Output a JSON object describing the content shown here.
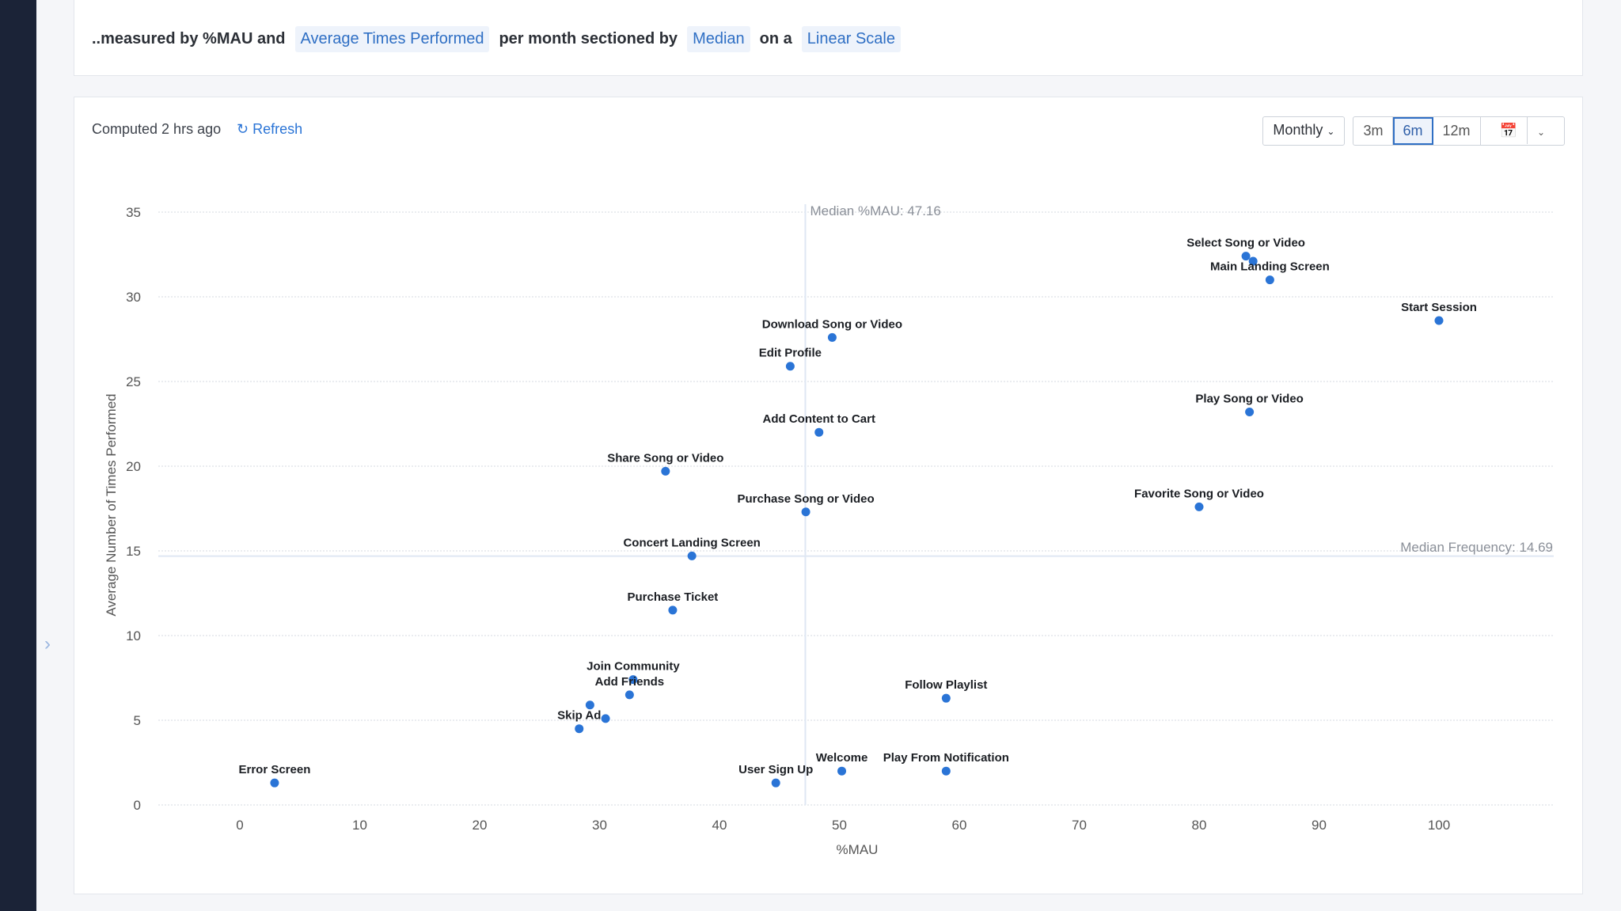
{
  "query": {
    "prefix": "..measured by %MAU and",
    "metric": "Average Times Performed",
    "mid": "per month sectioned by",
    "section": "Median",
    "on": "on a",
    "scale": "Linear Scale"
  },
  "toolbar": {
    "computed": "Computed 2 hrs ago",
    "refresh": "Refresh",
    "interval": "Monthly",
    "ranges": [
      "3m",
      "6m",
      "12m"
    ],
    "selected_range": "6m",
    "calendar_icon": "calendar-icon"
  },
  "colors": {
    "point": "#2a74d6",
    "median_line": "#dfe7f3",
    "accent": "#2f6fc4"
  },
  "chart_data": {
    "type": "scatter",
    "xlabel": "%MAU",
    "ylabel": "Average Number of Times Performed",
    "xlim": [
      -7,
      109
    ],
    "ylim": [
      0,
      35
    ],
    "xticks": [
      0,
      10,
      20,
      30,
      40,
      50,
      60,
      70,
      80,
      90,
      100
    ],
    "yticks": [
      0,
      5,
      10,
      15,
      20,
      25,
      30,
      35
    ],
    "grid": "horizontal",
    "median_x": {
      "value": 47.16,
      "label": "Median %MAU: 47.16"
    },
    "median_y": {
      "value": 14.69,
      "label": "Median Frequency: 14.69"
    },
    "points": [
      {
        "label": "Select Song or Video",
        "x": 83.9,
        "y": 32.4
      },
      {
        "label": "",
        "x": 84.5,
        "y": 32.1
      },
      {
        "label": "Main Landing Screen",
        "x": 85.9,
        "y": 31.0
      },
      {
        "label": "Start Session",
        "x": 100.0,
        "y": 28.6
      },
      {
        "label": "Download Song or Video",
        "x": 49.4,
        "y": 27.6
      },
      {
        "label": "Edit Profile",
        "x": 45.9,
        "y": 25.9
      },
      {
        "label": "Play Song or Video",
        "x": 84.2,
        "y": 23.2
      },
      {
        "label": "Add Content to Cart",
        "x": 48.3,
        "y": 22.0
      },
      {
        "label": "Share Song or Video",
        "x": 35.5,
        "y": 19.7
      },
      {
        "label": "Favorite Song or Video",
        "x": 80.0,
        "y": 17.6
      },
      {
        "label": "Purchase Song or Video",
        "x": 47.2,
        "y": 17.3
      },
      {
        "label": "Concert Landing Screen",
        "x": 37.7,
        "y": 14.7
      },
      {
        "label": "Purchase Ticket",
        "x": 36.1,
        "y": 11.5
      },
      {
        "label": "Join Community",
        "x": 32.8,
        "y": 7.4
      },
      {
        "label": "Add Friends",
        "x": 32.5,
        "y": 6.5
      },
      {
        "label": "",
        "x": 29.2,
        "y": 5.9
      },
      {
        "label": "",
        "x": 30.5,
        "y": 5.1
      },
      {
        "label": "Skip Ad",
        "x": 28.3,
        "y": 4.5
      },
      {
        "label": "Follow Playlist",
        "x": 58.9,
        "y": 6.3
      },
      {
        "label": "Error Screen",
        "x": 2.9,
        "y": 1.3
      },
      {
        "label": "User Sign Up",
        "x": 44.7,
        "y": 1.3
      },
      {
        "label": "Welcome",
        "x": 50.2,
        "y": 2.0
      },
      {
        "label": "Play From Notification",
        "x": 58.9,
        "y": 2.0
      }
    ]
  }
}
